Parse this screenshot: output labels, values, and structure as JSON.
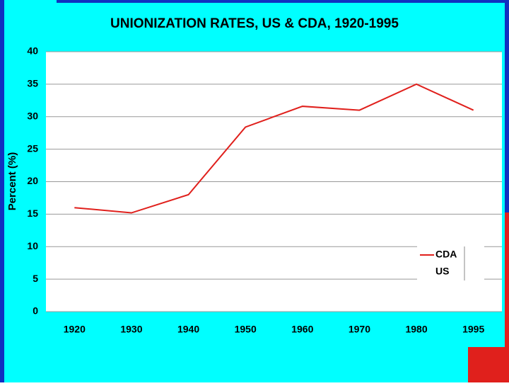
{
  "chart_data": {
    "type": "line",
    "title": "UNIONIZATION RATES, US & CDA, 1920-1995",
    "y_label": "Percent (%)",
    "categories": [
      "1920",
      "1930",
      "1940",
      "1950",
      "1960",
      "1970",
      "1980",
      "1995"
    ],
    "series": [
      {
        "name": "CDA",
        "color": "#e0201c",
        "values": [
          16,
          15.2,
          18,
          28.4,
          31.6,
          31,
          35,
          31
        ]
      },
      {
        "name": "US",
        "color": "#ffffff",
        "values": [
          null,
          null,
          null,
          null,
          null,
          null,
          null,
          null
        ]
      }
    ],
    "ylim": [
      0,
      40
    ],
    "yticks": [
      0,
      5,
      10,
      15,
      20,
      25,
      30,
      35,
      40
    ],
    "grid": true,
    "legend": "lower right"
  }
}
